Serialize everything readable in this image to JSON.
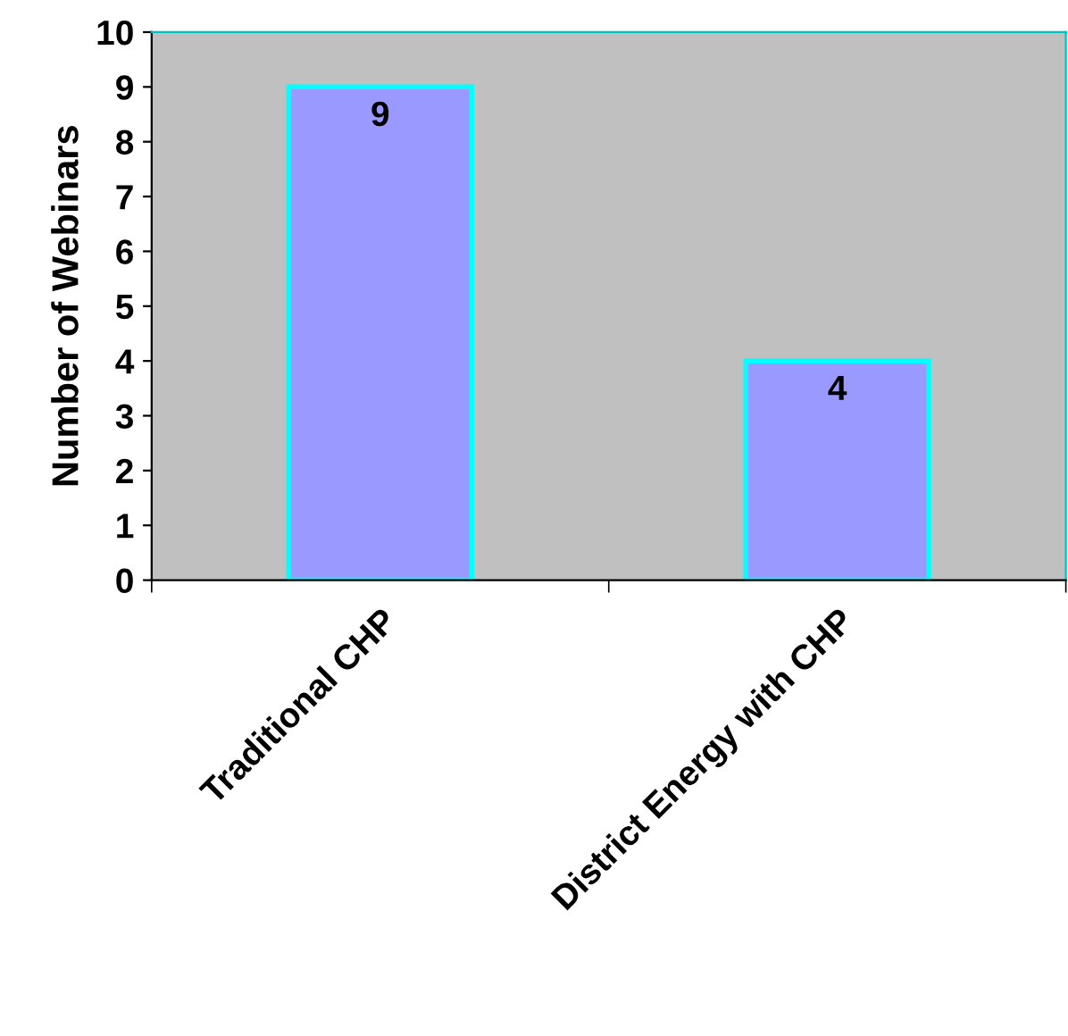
{
  "chart_data": {
    "type": "bar",
    "ylabel": "Number of Webinars",
    "categories": [
      "Traditional CHP",
      "District Energy with CHP"
    ],
    "values": [
      9,
      4
    ],
    "color": "#9999ff",
    "ylim": [
      0,
      10
    ],
    "yticks": [
      0,
      1,
      2,
      3,
      4,
      5,
      6,
      7,
      8,
      9,
      10
    ],
    "grid": false,
    "data_labels": true
  }
}
